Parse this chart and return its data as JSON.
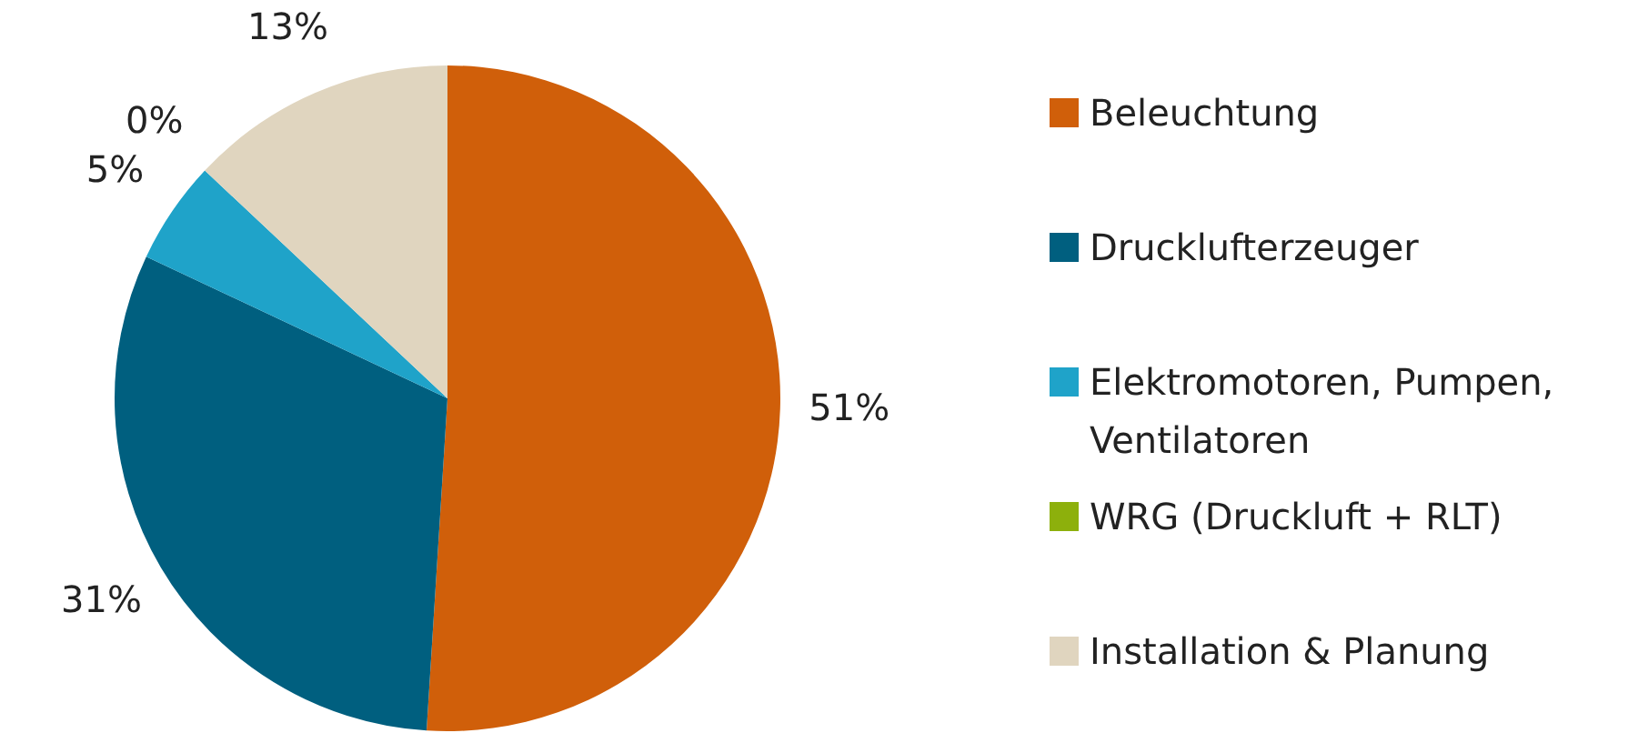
{
  "chart_data": {
    "type": "pie",
    "categories": [
      "Beleuchtung",
      "Drucklufterzeuger",
      "Elektromotoren, Pumpen, Ventilatoren",
      "WRG (Druckluft + RLT)",
      "Installation & Planung"
    ],
    "values": [
      51,
      31,
      5,
      0,
      13
    ],
    "colors": [
      "#d05f0a",
      "#005f7f",
      "#1fa3c9",
      "#8db00c",
      "#e0d5bf"
    ],
    "value_labels": [
      "51%",
      "31%",
      "5%",
      "0%",
      "13%"
    ],
    "legend": "right"
  }
}
